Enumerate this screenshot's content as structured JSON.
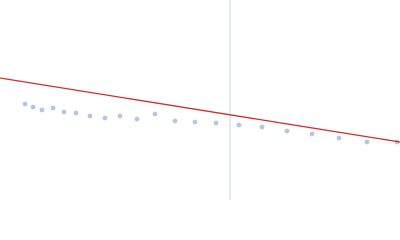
{
  "chart_data": {
    "type": "scatter",
    "xlim": [
      0,
      400
    ],
    "ylim": [
      0,
      200
    ],
    "vline": {
      "x": 230,
      "color": "#c8d4ea"
    },
    "series": [
      {
        "type": "scatter",
        "color": "#b4c6e4",
        "x": [
          25,
          33,
          42,
          53,
          64,
          76,
          90,
          105,
          120,
          137,
          155,
          175,
          195,
          216,
          239,
          262,
          287,
          312,
          339,
          367,
          397
        ],
        "values": [
          96,
          93,
          90,
          92,
          88,
          87,
          84,
          82,
          84,
          81,
          86,
          79,
          78,
          77,
          75,
          73,
          69,
          66,
          62,
          58,
          58
        ]
      },
      {
        "type": "line",
        "color": "#d42a2a",
        "x": [
          0,
          400
        ],
        "values": [
          122,
          58
        ]
      }
    ]
  }
}
